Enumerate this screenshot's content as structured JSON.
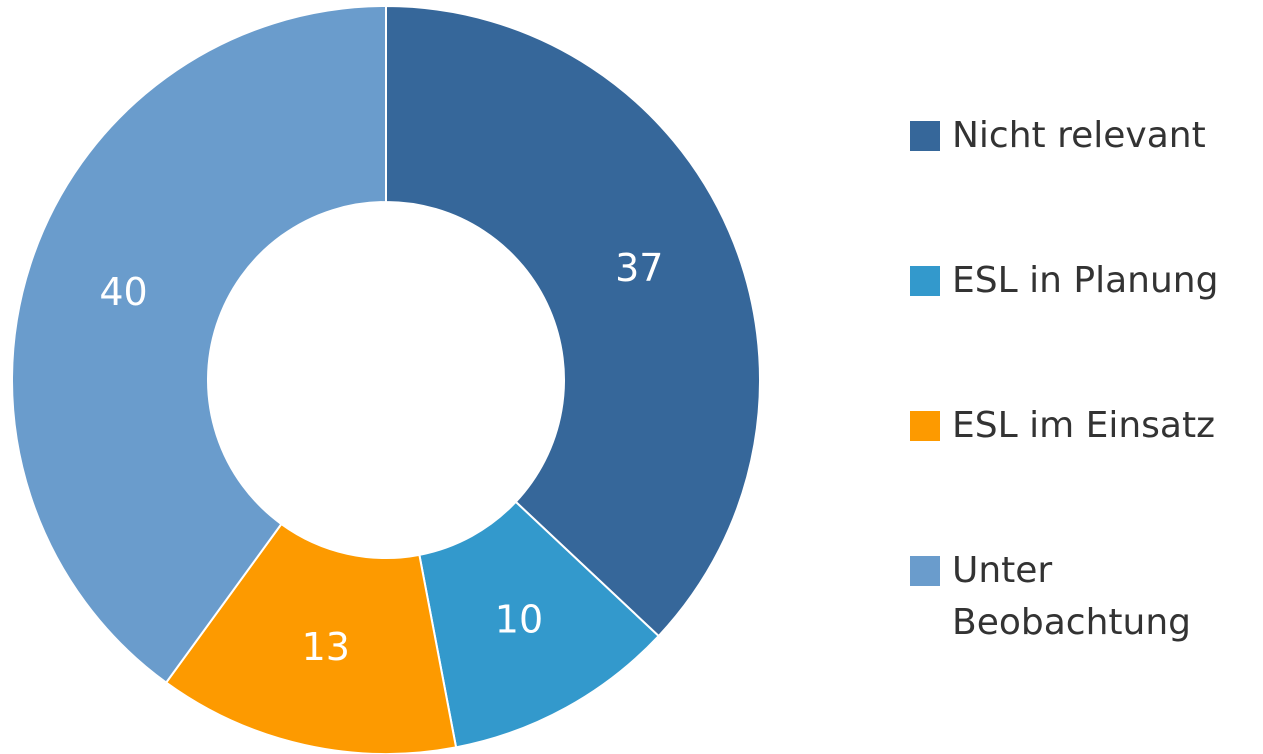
{
  "chart_data": {
    "type": "donut",
    "categories": [
      "Nicht relevant",
      "ESL in Planung",
      "ESL im Einsatz",
      "Unter Beobachtung"
    ],
    "values": [
      37,
      10,
      13,
      40
    ],
    "colors": [
      "#36679a",
      "#3399cc",
      "#fd9a00",
      "#6a9ccc"
    ],
    "legend": "right"
  }
}
